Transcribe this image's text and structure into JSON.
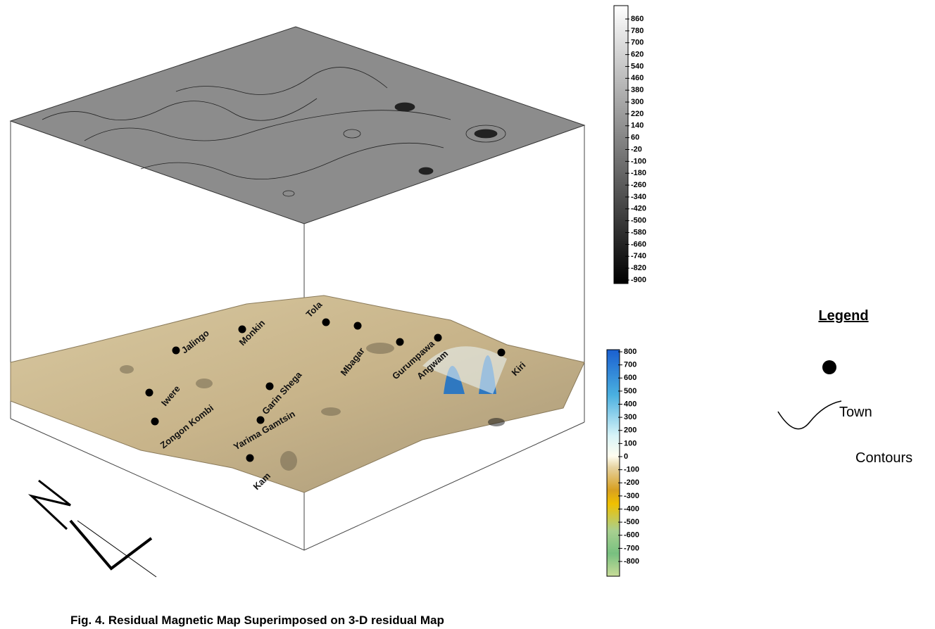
{
  "figure": {
    "caption": "Fig. 4. Residual Magnetic Map Superimposed on 3-D residual Map",
    "towns": [
      "Jalingo",
      "Monkin",
      "Tola",
      "Mbagar",
      "Gurumpawa",
      "Angwam",
      "Kiri",
      "Iwere",
      "Zongon Kombi",
      "Garin Shega",
      "Yarima Gamtsin",
      "Kam"
    ],
    "contour_scale": {
      "ticks": [
        860,
        780,
        700,
        620,
        540,
        460,
        380,
        300,
        220,
        140,
        60,
        -20,
        -100,
        -180,
        -260,
        -340,
        -420,
        -500,
        -580,
        -660,
        -740,
        -820,
        -900
      ]
    },
    "surface_scale": {
      "ticks": [
        800,
        700,
        600,
        500,
        400,
        300,
        200,
        100,
        0,
        -100,
        -200,
        -300,
        -400,
        -500,
        -600,
        -700,
        -800
      ]
    },
    "legend": {
      "title": "Legend",
      "items": [
        "Town",
        "Contours"
      ]
    }
  }
}
